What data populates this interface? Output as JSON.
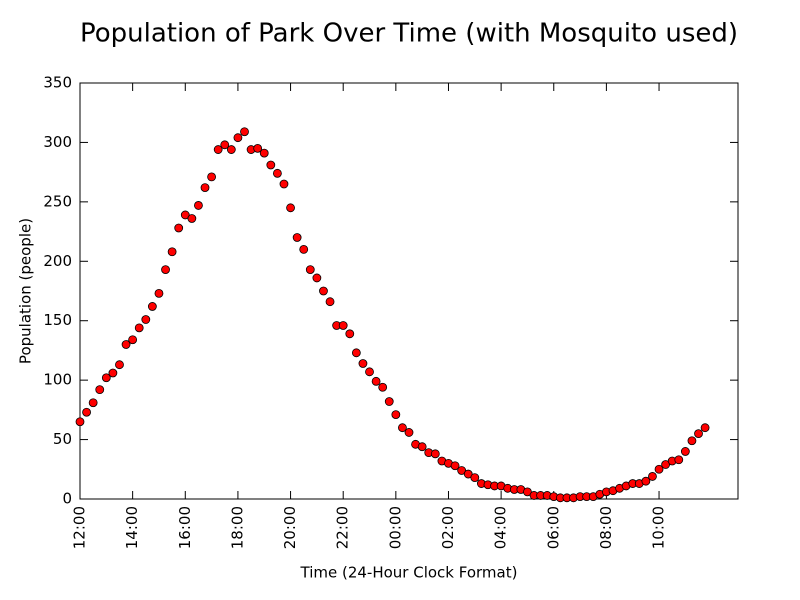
{
  "chart_data": {
    "type": "scatter",
    "title": "Population of Park Over Time (with Mosquito used)",
    "xlabel": "Time (24-Hour Clock Format)",
    "ylabel": "Population (people)",
    "color": "#ff0000",
    "edgecolor": "#000000",
    "x": [
      0,
      0.25,
      0.5,
      0.75,
      1,
      1.25,
      1.5,
      1.75,
      2,
      2.25,
      2.5,
      2.75,
      3,
      3.25,
      3.5,
      3.75,
      4,
      4.25,
      4.5,
      4.75,
      5,
      5.25,
      5.5,
      5.75,
      6,
      6.25,
      6.5,
      6.75,
      7,
      7.25,
      7.5,
      7.75,
      8,
      8.25,
      8.5,
      8.75,
      9,
      9.25,
      9.5,
      9.75,
      10,
      10.25,
      10.5,
      10.75,
      11,
      11.25,
      11.5,
      11.75,
      12,
      12.25,
      12.5,
      12.75,
      13,
      13.25,
      13.5,
      13.75,
      14,
      14.25,
      14.5,
      14.75,
      15,
      15.25,
      15.5,
      15.75,
      16,
      16.25,
      16.5,
      16.75,
      17,
      17.25,
      17.5,
      17.75,
      18,
      18.25,
      18.5,
      18.75,
      19,
      19.25,
      19.5,
      19.75,
      20,
      20.25,
      20.5,
      20.75,
      21,
      21.25,
      21.5,
      21.75,
      22,
      22.25,
      22.5,
      22.75,
      23,
      23.25,
      23.5,
      23.75
    ],
    "values": [
      65,
      73,
      81,
      92,
      102,
      106,
      113,
      130,
      134,
      144,
      151,
      162,
      173,
      193,
      208,
      228,
      239,
      236,
      247,
      262,
      271,
      294,
      298,
      294,
      304,
      309,
      294,
      295,
      291,
      281,
      274,
      265,
      245,
      220,
      210,
      193,
      186,
      175,
      166,
      146,
      146,
      139,
      123,
      114,
      107,
      99,
      94,
      82,
      71,
      60,
      56,
      46,
      44,
      39,
      38,
      32,
      30,
      28,
      24,
      21,
      18,
      13,
      12,
      11,
      11,
      9,
      8,
      8,
      6,
      3,
      3,
      3,
      2,
      1,
      1,
      1,
      2,
      2,
      2,
      4,
      6,
      7,
      9,
      11,
      13,
      13,
      15,
      19,
      25,
      29,
      32,
      33,
      40,
      49,
      55,
      60
    ],
    "xlim": [
      0,
      25
    ],
    "xticks": [
      {
        "value": 0,
        "label": "12:00"
      },
      {
        "value": 2,
        "label": "14:00"
      },
      {
        "value": 4,
        "label": "16:00"
      },
      {
        "value": 6,
        "label": "18:00"
      },
      {
        "value": 8,
        "label": "20:00"
      },
      {
        "value": 10,
        "label": "22:00"
      },
      {
        "value": 12,
        "label": "00:00"
      },
      {
        "value": 14,
        "label": "02:00"
      },
      {
        "value": 16,
        "label": "04:00"
      },
      {
        "value": 18,
        "label": "06:00"
      },
      {
        "value": 20,
        "label": "08:00"
      },
      {
        "value": 22,
        "label": "10:00"
      }
    ],
    "ylim": [
      0,
      350
    ],
    "yticks": [
      0,
      50,
      100,
      150,
      200,
      250,
      300,
      350
    ],
    "grid": false
  }
}
